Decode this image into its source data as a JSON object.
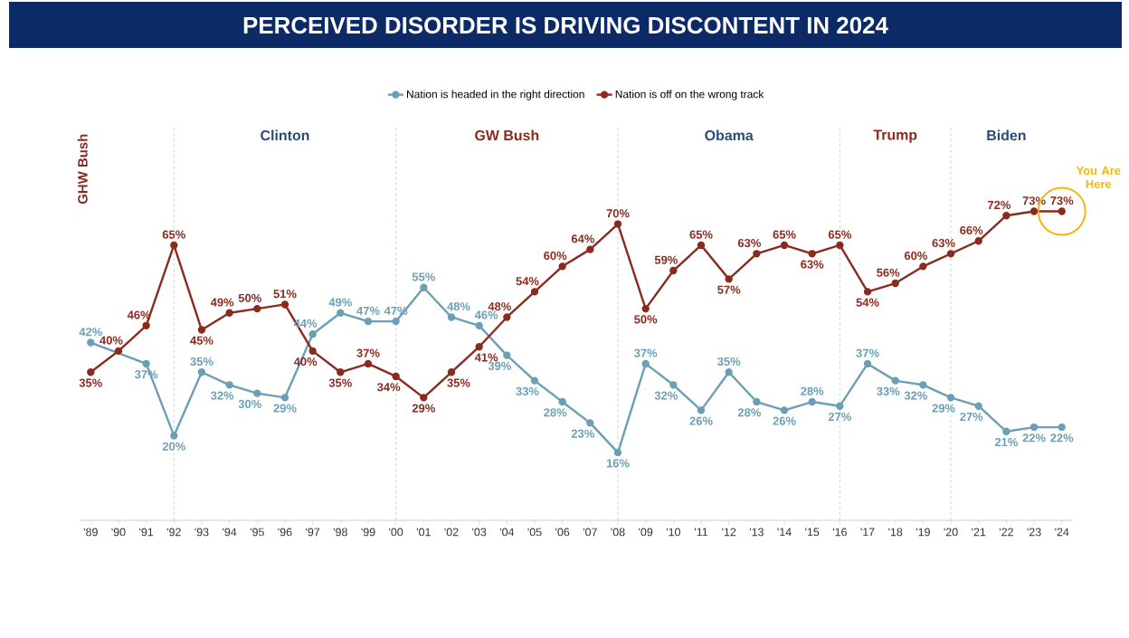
{
  "chart_data": {
    "type": "line",
    "title": "PERCEIVED DISORDER IS DRIVING DISCONTENT IN 2024",
    "x": [
      1989,
      1990,
      1991,
      1992,
      1993,
      1994,
      1995,
      1996,
      1997,
      1998,
      1999,
      2000,
      2001,
      2002,
      2003,
      2004,
      2005,
      2006,
      2007,
      2008,
      2009,
      2010,
      2011,
      2012,
      2013,
      2014,
      2015,
      2016,
      2017,
      2018,
      2019,
      2020,
      2021,
      2022,
      2023,
      2024
    ],
    "xlim": [
      1988.6,
      2024.4
    ],
    "xticks": [
      {
        "value": 1989,
        "label": "'89"
      },
      {
        "value": 1990,
        "label": "'90"
      },
      {
        "value": 1991,
        "label": "'91"
      },
      {
        "value": 1992,
        "label": "'92"
      },
      {
        "value": 1993,
        "label": "'93"
      },
      {
        "value": 1994,
        "label": "'94"
      },
      {
        "value": 1995,
        "label": "'95"
      },
      {
        "value": 1996,
        "label": "'96"
      },
      {
        "value": 1997,
        "label": "'97"
      },
      {
        "value": 1998,
        "label": "'98"
      },
      {
        "value": 1999,
        "label": "'99"
      },
      {
        "value": 2000,
        "label": "'00"
      },
      {
        "value": 2001,
        "label": "'01"
      },
      {
        "value": 2002,
        "label": "'02"
      },
      {
        "value": 2003,
        "label": "'03"
      },
      {
        "value": 2004,
        "label": "'04"
      },
      {
        "value": 2005,
        "label": "'05"
      },
      {
        "value": 2006,
        "label": "'06"
      },
      {
        "value": 2007,
        "label": "'07"
      },
      {
        "value": 2008,
        "label": "'08"
      },
      {
        "value": 2009,
        "label": "'09"
      },
      {
        "value": 2010,
        "label": "'10"
      },
      {
        "value": 2011,
        "label": "'11"
      },
      {
        "value": 2012,
        "label": "'12"
      },
      {
        "value": 2013,
        "label": "'13"
      },
      {
        "value": 2014,
        "label": "'14"
      },
      {
        "value": 2015,
        "label": "'15"
      },
      {
        "value": 2016,
        "label": "'16"
      },
      {
        "value": 2017,
        "label": "'17"
      },
      {
        "value": 2018,
        "label": "'18"
      },
      {
        "value": 2019,
        "label": "'19"
      },
      {
        "value": 2020,
        "label": "'20"
      },
      {
        "value": 2021,
        "label": "'21"
      },
      {
        "value": 2022,
        "label": "'22"
      },
      {
        "value": 2023,
        "label": "'23"
      },
      {
        "value": 2024,
        "label": "'24"
      }
    ],
    "series": [
      {
        "name": "Nation is headed in the right direction",
        "color": "#6a9fb5",
        "values": [
          42,
          null,
          37,
          20,
          35,
          32,
          30,
          29,
          44,
          49,
          47,
          47,
          55,
          48,
          46,
          39,
          33,
          28,
          23,
          16,
          37,
          32,
          26,
          35,
          28,
          26,
          28,
          27,
          37,
          33,
          32,
          29,
          27,
          21,
          22,
          22
        ],
        "value_labels": [
          "42%",
          null,
          "37%",
          "20%",
          "35%",
          "32%",
          "30%",
          "29%",
          "44%",
          "49%",
          "47%",
          "47%",
          "55%",
          "48%",
          "46%",
          "39%",
          "33%",
          "28%",
          "23%",
          "16%",
          "37%",
          "32%",
          "26%",
          "35%",
          "28%",
          "26%",
          "28%",
          "27%",
          "37%",
          "33%",
          "32%",
          "29%",
          "27%",
          "21%",
          "22%",
          "22%"
        ]
      },
      {
        "name": "Nation is off on the wrong track",
        "color": "#8b2a1f",
        "values": [
          35,
          40,
          46,
          65,
          45,
          49,
          50,
          51,
          40,
          35,
          37,
          34,
          29,
          35,
          41,
          48,
          54,
          60,
          64,
          70,
          50,
          59,
          65,
          57,
          63,
          65,
          63,
          65,
          54,
          56,
          60,
          63,
          66,
          72,
          73,
          73
        ],
        "value_labels": [
          "35%",
          "40%",
          "46%",
          "65%",
          "45%",
          "49%",
          "50%",
          "51%",
          "40%",
          "35%",
          "37%",
          "34%",
          "29%",
          "35%",
          "41%",
          "48%",
          "54%",
          "60%",
          "64%",
          "70%",
          "50%",
          "59%",
          "65%",
          "57%",
          "63%",
          "65%",
          "63%",
          "65%",
          "54%",
          "56%",
          "60%",
          "63%",
          "66%",
          "72%",
          "73%",
          "73%"
        ]
      }
    ],
    "ref_lines": [
      {
        "axis": "x",
        "value": 1992,
        "color": "#b0b0b0",
        "line_style": "dashed"
      },
      {
        "axis": "x",
        "value": 2000,
        "color": "#b0b0b0",
        "line_style": "dashed"
      },
      {
        "axis": "x",
        "value": 2008,
        "color": "#b0b0b0",
        "line_style": "dashed"
      },
      {
        "axis": "x",
        "value": 2016,
        "color": "#b0b0b0",
        "line_style": "dashed"
      },
      {
        "axis": "x",
        "value": 2020,
        "color": "#b0b0b0",
        "line_style": "dashed"
      }
    ],
    "annotations": [
      "GHW Bush",
      "Clinton",
      "GW Bush",
      "Obama",
      "Trump",
      "Biden",
      {
        "text": "You Are Here",
        "x": 2024,
        "y": 73
      }
    ],
    "legend": "top",
    "grid": false,
    "marker": "circle",
    "line_style": "solid"
  }
}
